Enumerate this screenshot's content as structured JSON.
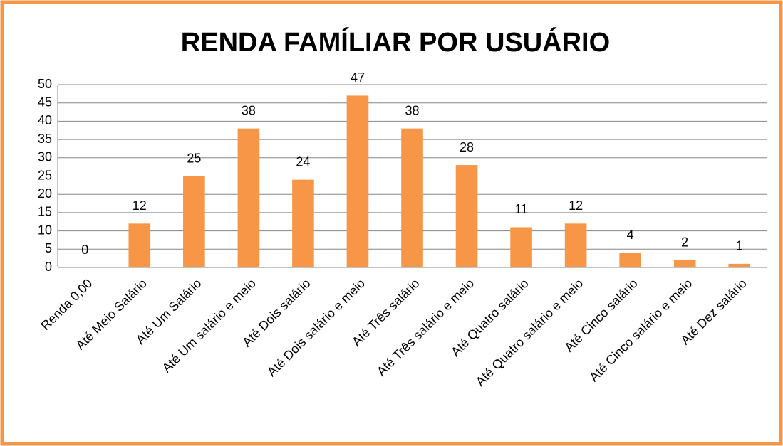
{
  "chart_data": {
    "type": "bar",
    "title": "RENDA FAMÍLIAR POR USUÁRIO",
    "categories": [
      "Renda 0,00",
      "Até Meio Salário",
      "Até Um Salário",
      "Até Um salário e meio",
      "Até Dois salário",
      "Até Dois salário e meio",
      "Até Três salário",
      "Até Três salário e meio",
      "Até Quatro salário",
      "Até Quatro salário e meio",
      "Até Cinco salário",
      "Até Cinco salário e meio",
      "Até Dez salário"
    ],
    "values": [
      0,
      12,
      25,
      38,
      24,
      47,
      38,
      28,
      11,
      12,
      4,
      2,
      1
    ],
    "color": "#f79646",
    "ylim": [
      0,
      50
    ],
    "yticks": [
      0,
      5,
      10,
      15,
      20,
      25,
      30,
      35,
      40,
      45,
      50
    ],
    "grid": true
  }
}
